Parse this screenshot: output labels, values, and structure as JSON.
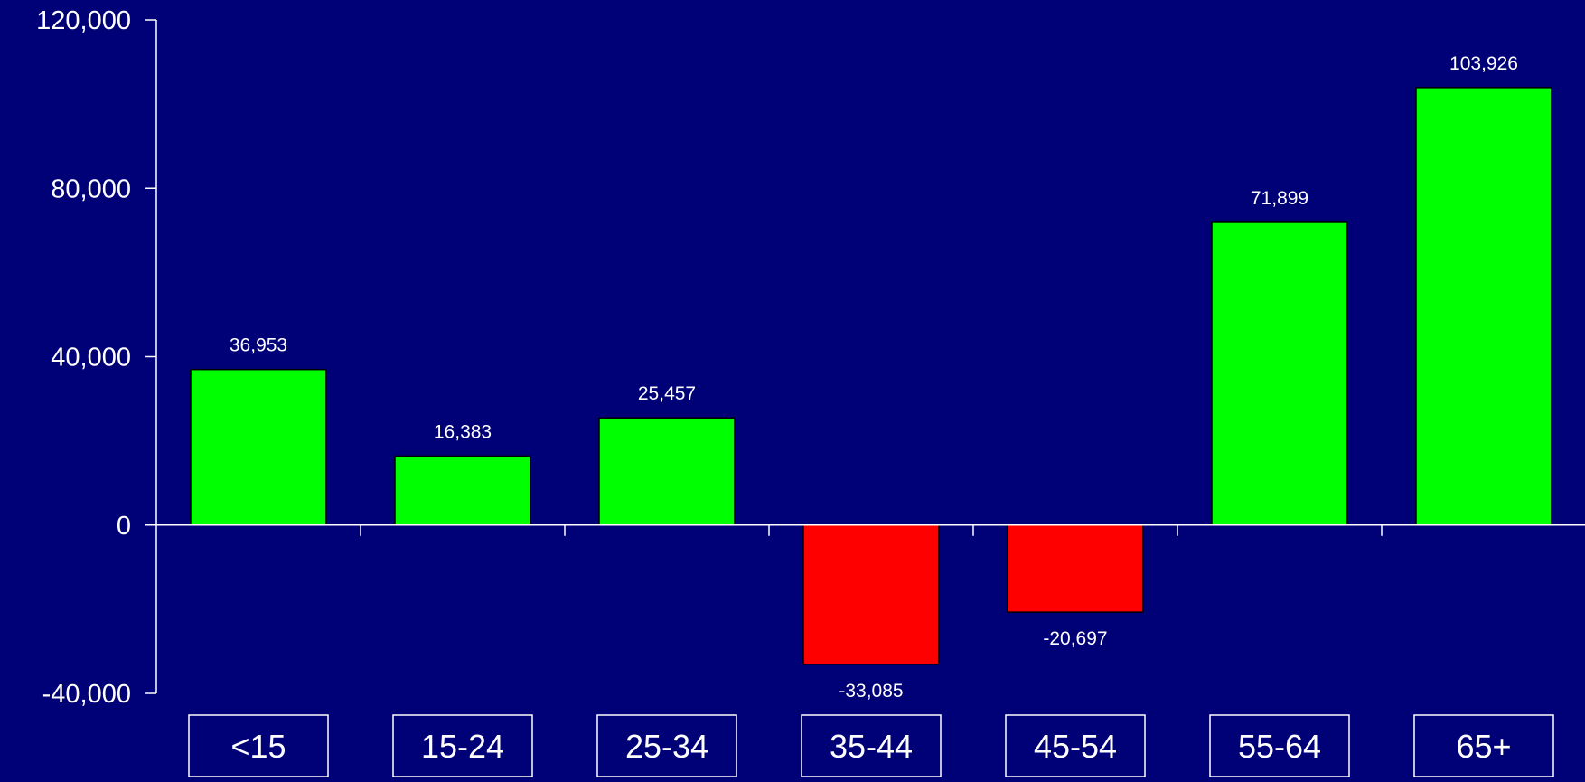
{
  "chart_data": {
    "type": "bar",
    "categories": [
      "<15",
      "15-24",
      "25-34",
      "35-44",
      "45-54",
      "55-64",
      "65+"
    ],
    "values": [
      36953,
      16383,
      25457,
      -33085,
      -20697,
      71899,
      103926
    ],
    "value_labels": [
      "36,953",
      "16,383",
      "25,457",
      "-33,085",
      "-20,697",
      "71,899",
      "103,926"
    ],
    "ylim": [
      -40000,
      120000
    ],
    "yticks": [
      120000,
      80000,
      40000,
      0,
      -40000
    ],
    "ytick_labels": [
      "120,000",
      "80,000",
      "40,000",
      "0",
      "-40,000"
    ],
    "grid": false,
    "colors": {
      "background": "#000077",
      "positive": "#00ff00",
      "negative": "#ff0000",
      "axis": "#ffffff",
      "text": "#ffffff"
    }
  }
}
